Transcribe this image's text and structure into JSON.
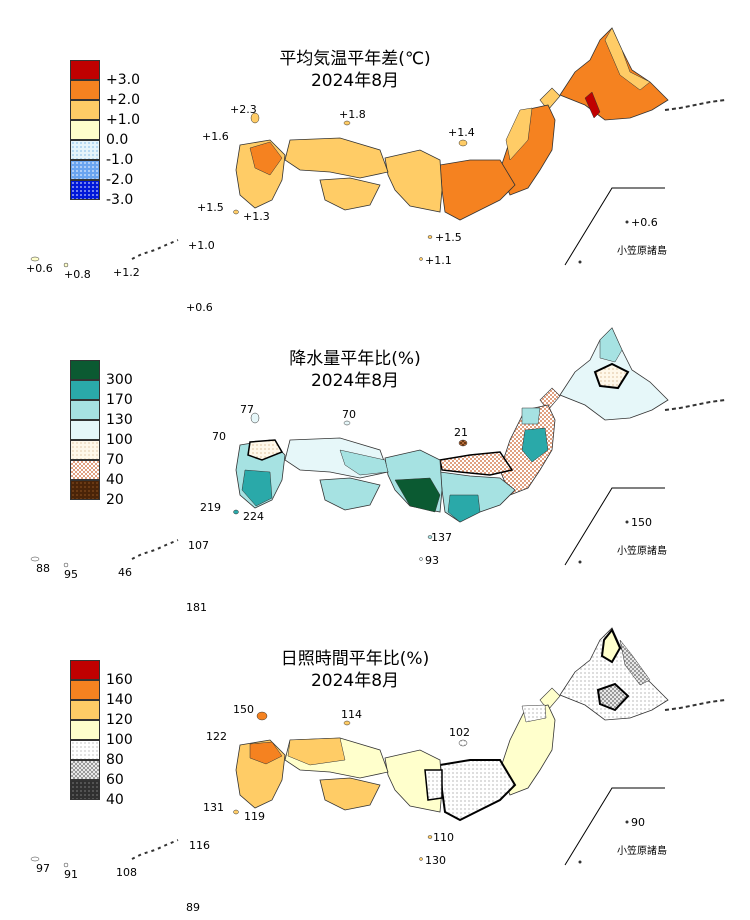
{
  "panels": [
    {
      "title": "平均気温平年差(℃)",
      "period": "2024年8月",
      "legend": [
        {
          "label": "+3.0",
          "color": "#c00000",
          "pattern": "solid"
        },
        {
          "label": "+2.0",
          "color": "#f58220",
          "pattern": "solid"
        },
        {
          "label": "+1.0",
          "color": "#ffcc66",
          "pattern": "solid"
        },
        {
          "label": "0.0",
          "color": "#ffffcc",
          "pattern": "solid"
        },
        {
          "label": "-1.0",
          "color": "#bde4f5",
          "pattern": "dots-light"
        },
        {
          "label": "-2.0",
          "color": "#6aa4f0",
          "pattern": "dots-mid"
        },
        {
          "label": "-3.0",
          "color": "#0018d8",
          "pattern": "dots-dark"
        }
      ],
      "values": {
        "rebun": "+2.3",
        "oki": "+1.8",
        "tsushima": "+1.6",
        "sado": "+1.4",
        "kagoshima_w": "+1.5",
        "kagoshima_e": "+1.3",
        "hachijo": "+1.5",
        "chichijima": "+1.1",
        "amami": "+1.0",
        "okinawa": "+1.2",
        "miyako": "+0.8",
        "ishigaki": "+0.6",
        "minamidaito": "+0.6",
        "ogasawara": "+0.6"
      },
      "ogasawara_label": "小笠原諸島"
    },
    {
      "title": "降水量平年比(%)",
      "period": "2024年8月",
      "legend": [
        {
          "label": "300",
          "color": "#0b5a32",
          "pattern": "solid"
        },
        {
          "label": "170",
          "color": "#2aa9a9",
          "pattern": "solid"
        },
        {
          "label": "130",
          "color": "#a6e2e2",
          "pattern": "solid"
        },
        {
          "label": "100",
          "color": "#e6f7f9",
          "pattern": "solid"
        },
        {
          "label": "70",
          "color": "#fff4e0",
          "pattern": "dots-light"
        },
        {
          "label": "40",
          "color": "#e8b69a",
          "pattern": "checker"
        },
        {
          "label": "20",
          "color": "#a0522d",
          "pattern": "checker-dark"
        }
      ],
      "values": {
        "rebun": "77",
        "oki": "70",
        "tsushima": "70",
        "sado": "21",
        "kagoshima_w": "219",
        "kagoshima_e": "224",
        "hachijo": "137",
        "chichijima": "93",
        "amami": "107",
        "okinawa": "46",
        "miyako": "95",
        "ishigaki": "88",
        "minamidaito": "181",
        "ogasawara": "150"
      },
      "ogasawara_label": "小笠原諸島"
    },
    {
      "title": "日照時間平年比(%)",
      "period": "2024年8月",
      "legend": [
        {
          "label": "160",
          "color": "#c00000",
          "pattern": "solid"
        },
        {
          "label": "140",
          "color": "#f58220",
          "pattern": "solid"
        },
        {
          "label": "120",
          "color": "#ffcc66",
          "pattern": "solid"
        },
        {
          "label": "100",
          "color": "#ffffcc",
          "pattern": "solid"
        },
        {
          "label": "80",
          "color": "#ffffff",
          "pattern": "dots-light"
        },
        {
          "label": "60",
          "color": "#b0b0b0",
          "pattern": "checker"
        },
        {
          "label": "40",
          "color": "#303030",
          "pattern": "dots-dark"
        }
      ],
      "values": {
        "rebun": "150",
        "oki": "114",
        "tsushima": "122",
        "sado": "102",
        "kagoshima_w": "131",
        "kagoshima_e": "119",
        "hachijo": "110",
        "chichijima": "130",
        "amami": "116",
        "okinawa": "108",
        "miyako": "91",
        "ishigaki": "97",
        "minamidaito": "89",
        "ogasawara": "90"
      },
      "ogasawara_label": "小笠原諸島"
    }
  ]
}
